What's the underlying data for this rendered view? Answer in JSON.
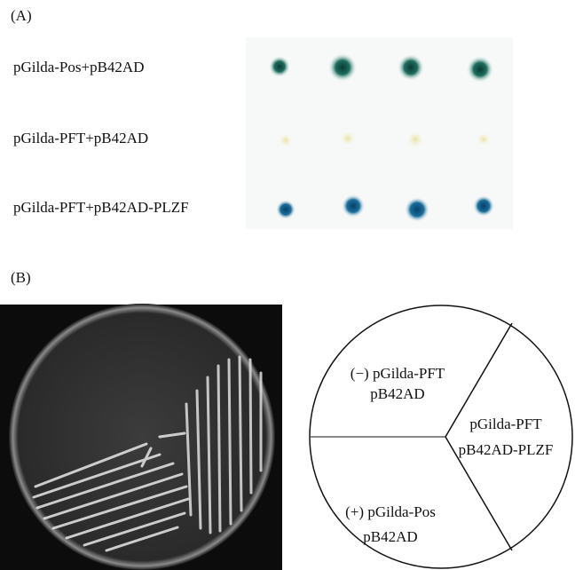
{
  "panel_a": {
    "label": "(A)",
    "rows": [
      "pGilda-Pos+pB42AD",
      "pGilda-PFT+pB42AD",
      "pGilda-PFT+pB42AD-PLZF"
    ]
  },
  "panel_b": {
    "label": "(B)",
    "sectors": [
      {
        "lines": [
          "(−) pGilda-PFT",
          "pB42AD"
        ]
      },
      {
        "lines": [
          "pGilda-PFT",
          "pB42AD-PLZF"
        ]
      },
      {
        "lines": [
          "(+) pGilda-Pos",
          "pB42AD"
        ]
      }
    ]
  }
}
